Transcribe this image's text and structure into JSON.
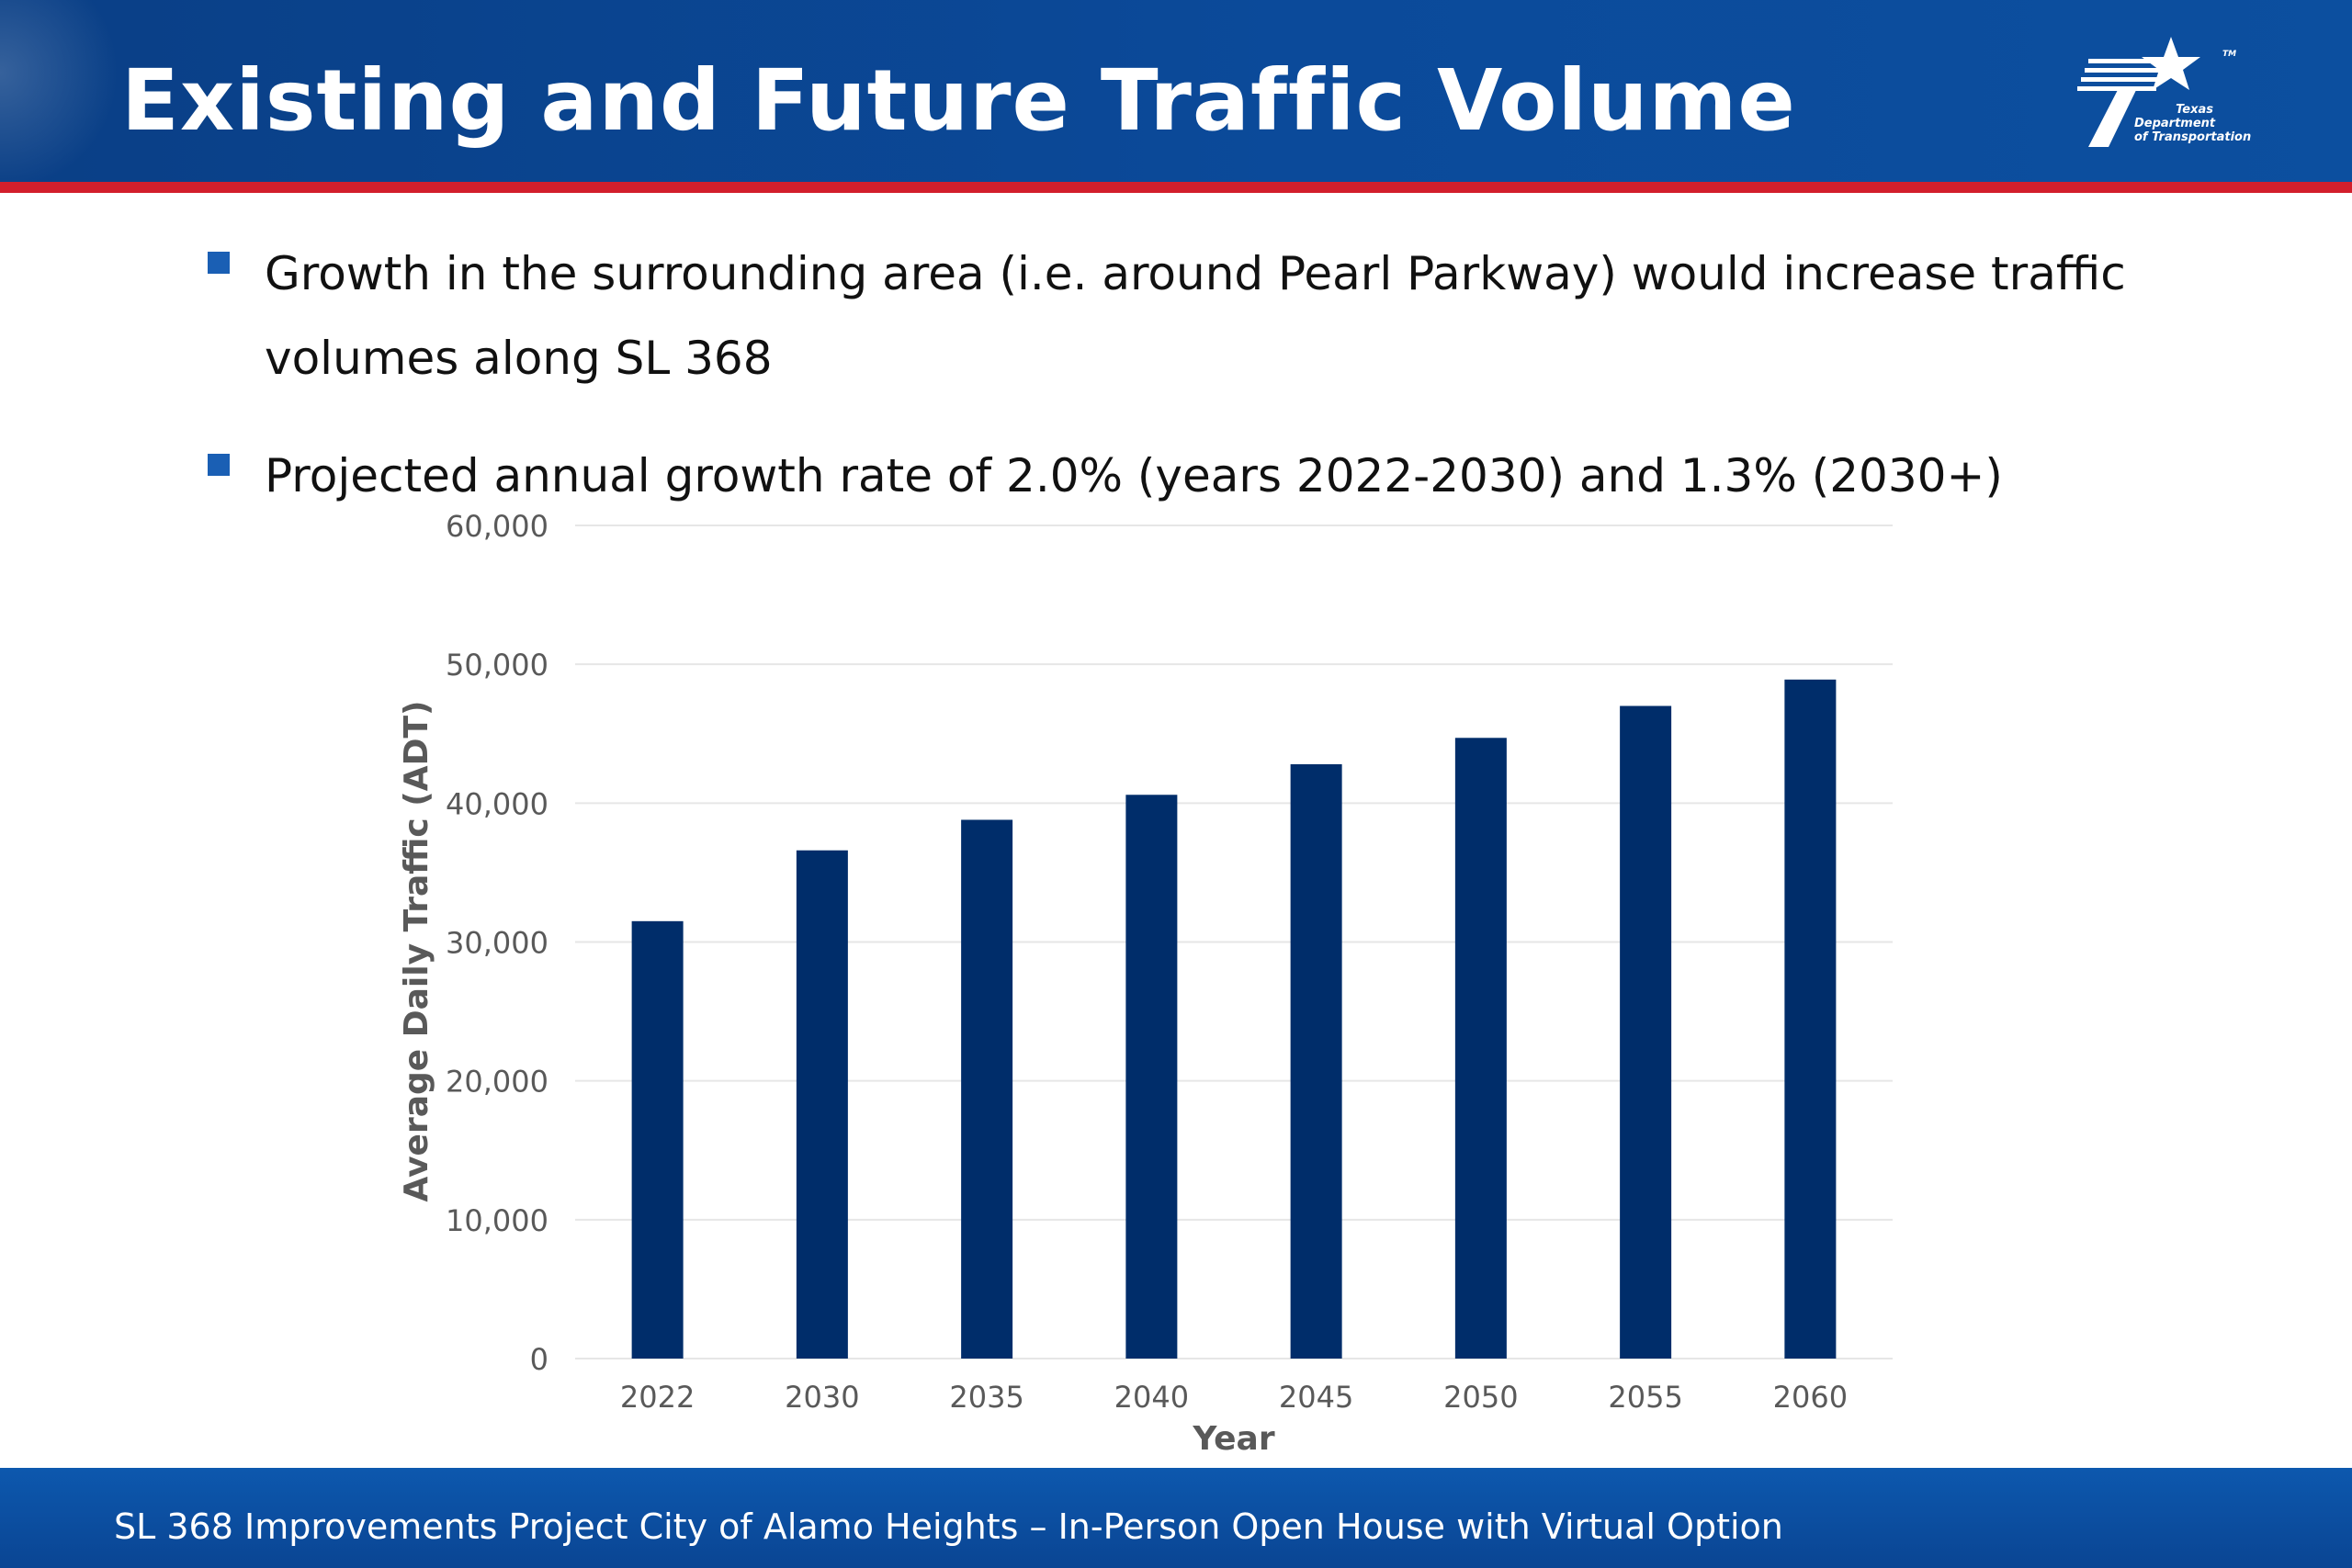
{
  "slide": {
    "title": "Existing and Future Traffic Volume",
    "logo_text": [
      "Texas",
      "Department",
      "of Transportation"
    ],
    "logo_tm": "TM",
    "bullets": [
      "Growth in the surrounding area (i.e. around Pearl Parkway) would increase traffic volumes along SL 368",
      "Projected annual growth rate of 2.0% (years 2022-2030) and 1.3% (2030+)"
    ],
    "footer": "SL 368 Improvements Project City of Alamo Heights – In-Person Open House with Virtual Option"
  },
  "colors": {
    "header": "#0b4a9a",
    "accent_rule": "#d21f2c",
    "bar": "#002d6a",
    "bullet": "#1a5fb4",
    "axis_text": "#595959",
    "grid": "#e6e6e6"
  },
  "chart_data": {
    "type": "bar",
    "categories": [
      "2022",
      "2030",
      "2035",
      "2040",
      "2045",
      "2050",
      "2055",
      "2060"
    ],
    "values": [
      31500,
      36600,
      38800,
      40600,
      42800,
      44700,
      47000,
      48900
    ],
    "xlabel": "Year",
    "ylabel": "Average Daily Traffic (ADT)",
    "ylim": [
      0,
      60000
    ],
    "yticks": [
      0,
      10000,
      20000,
      30000,
      40000,
      50000,
      60000
    ],
    "ytick_labels": [
      "0",
      "10,000",
      "20,000",
      "30,000",
      "40,000",
      "50,000",
      "60,000"
    ],
    "grid": true,
    "legend": false
  }
}
